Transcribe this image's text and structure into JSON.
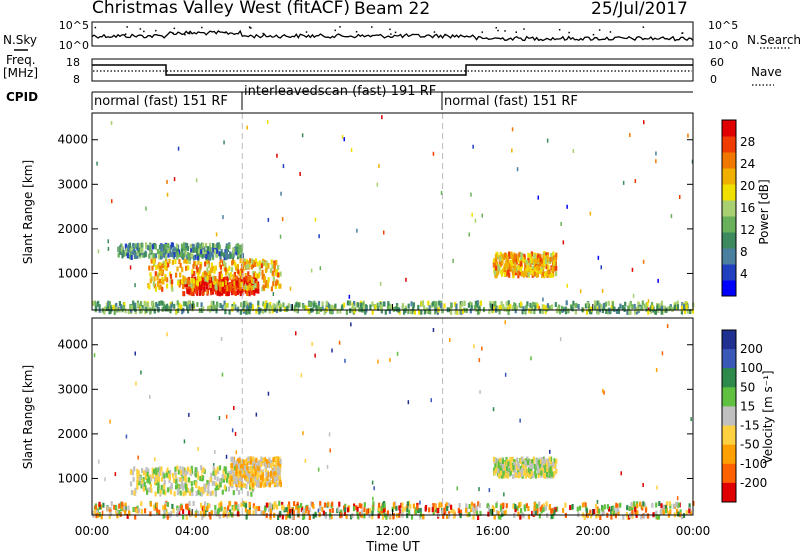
{
  "header": {
    "station": "Christmas Valley West (fitACF)",
    "beam": "Beam 22",
    "date": "25/Jul/2017"
  },
  "status_panels": {
    "nsky_label": "N.Sky",
    "nsky_ticks": [
      "10^5",
      "10^0"
    ],
    "nsky_right_ticks": [
      "10^5",
      "10^0"
    ],
    "nsearch_label": "N.Search",
    "freq_label": "Freq.",
    "freq_unit": "[MHz]",
    "freq_ticks": [
      "18",
      "8"
    ],
    "nave_ticks": [
      "60",
      "0"
    ],
    "nave_label": "Nave",
    "cpid_label": "CPID",
    "cpid_segments": [
      {
        "label": "normal (fast) 151 RF",
        "start_hour": 0,
        "end_hour": 6
      },
      {
        "label": "interleavedscan (fast) 191 RF",
        "start_hour": 6,
        "end_hour": 14
      },
      {
        "label": "normal (fast) 151 RF",
        "start_hour": 14,
        "end_hour": 24
      }
    ]
  },
  "chart_data": [
    {
      "type": "heatmap",
      "name": "power",
      "ylabel": "Slant Range [km]",
      "yticks": [
        1000,
        2000,
        3000,
        4000
      ],
      "ylim": [
        180,
        4600
      ],
      "xlim": [
        0,
        24
      ],
      "colorbar": {
        "label": "Power [dB]",
        "ticks": [
          4,
          8,
          12,
          16,
          20,
          24,
          28
        ],
        "colors": [
          "#0000ff",
          "#2040c0",
          "#4a7fa0",
          "#3d8a5e",
          "#69b05a",
          "#a8d070",
          "#f0e000",
          "#f0b000",
          "#f07800",
          "#f03c00",
          "#e00000"
        ]
      },
      "regions": [
        {
          "start_hour": 3.6,
          "end_hour": 6.6,
          "range_km": [
            600,
            950
          ],
          "level": "28"
        },
        {
          "start_hour": 2.2,
          "end_hour": 7.5,
          "range_km": [
            700,
            1350
          ],
          "level": "20"
        },
        {
          "start_hour": 1.0,
          "end_hour": 6.0,
          "range_km": [
            1400,
            1700
          ],
          "level": "8"
        },
        {
          "start_hour": 16.0,
          "end_hour": 18.5,
          "range_km": [
            1000,
            1500
          ],
          "level": "20"
        },
        {
          "start_hour": 0,
          "end_hour": 24,
          "range_km": [
            180,
            400
          ],
          "level": "12"
        }
      ]
    },
    {
      "type": "heatmap",
      "name": "velocity",
      "ylabel": "Slant Range [km]",
      "yticks": [
        1000,
        2000,
        3000,
        4000
      ],
      "ylim": [
        180,
        4600
      ],
      "xlim": [
        0,
        24
      ],
      "xlabel": "Time UT",
      "xticks": [
        "00:00",
        "04:00",
        "08:00",
        "12:00",
        "16:00",
        "20:00",
        "00:00"
      ],
      "colorbar": {
        "label": "Velocity [m s⁻¹]",
        "ticks": [
          "200",
          "100",
          "50",
          "15",
          "-15",
          "-50",
          "-100",
          "-200"
        ],
        "colors": [
          "#203090",
          "#3a58b8",
          "#2e8a4a",
          "#60c040",
          "#c0c0c0",
          "#ffd040",
          "#ffa000",
          "#ff6000",
          "#e00000"
        ]
      },
      "regions": [
        {
          "start_hour": 1.5,
          "end_hour": 6.5,
          "range_km": [
            700,
            1300
          ],
          "value": "-15 to 15"
        },
        {
          "start_hour": 5.5,
          "end_hour": 7.5,
          "range_km": [
            900,
            1500
          ],
          "value": "-50"
        },
        {
          "start_hour": 16.0,
          "end_hour": 18.5,
          "range_km": [
            1100,
            1500
          ],
          "value": "-15 to 15"
        },
        {
          "start_hour": 0,
          "end_hour": 24,
          "range_km": [
            180,
            500
          ],
          "value": "-50"
        }
      ]
    }
  ]
}
